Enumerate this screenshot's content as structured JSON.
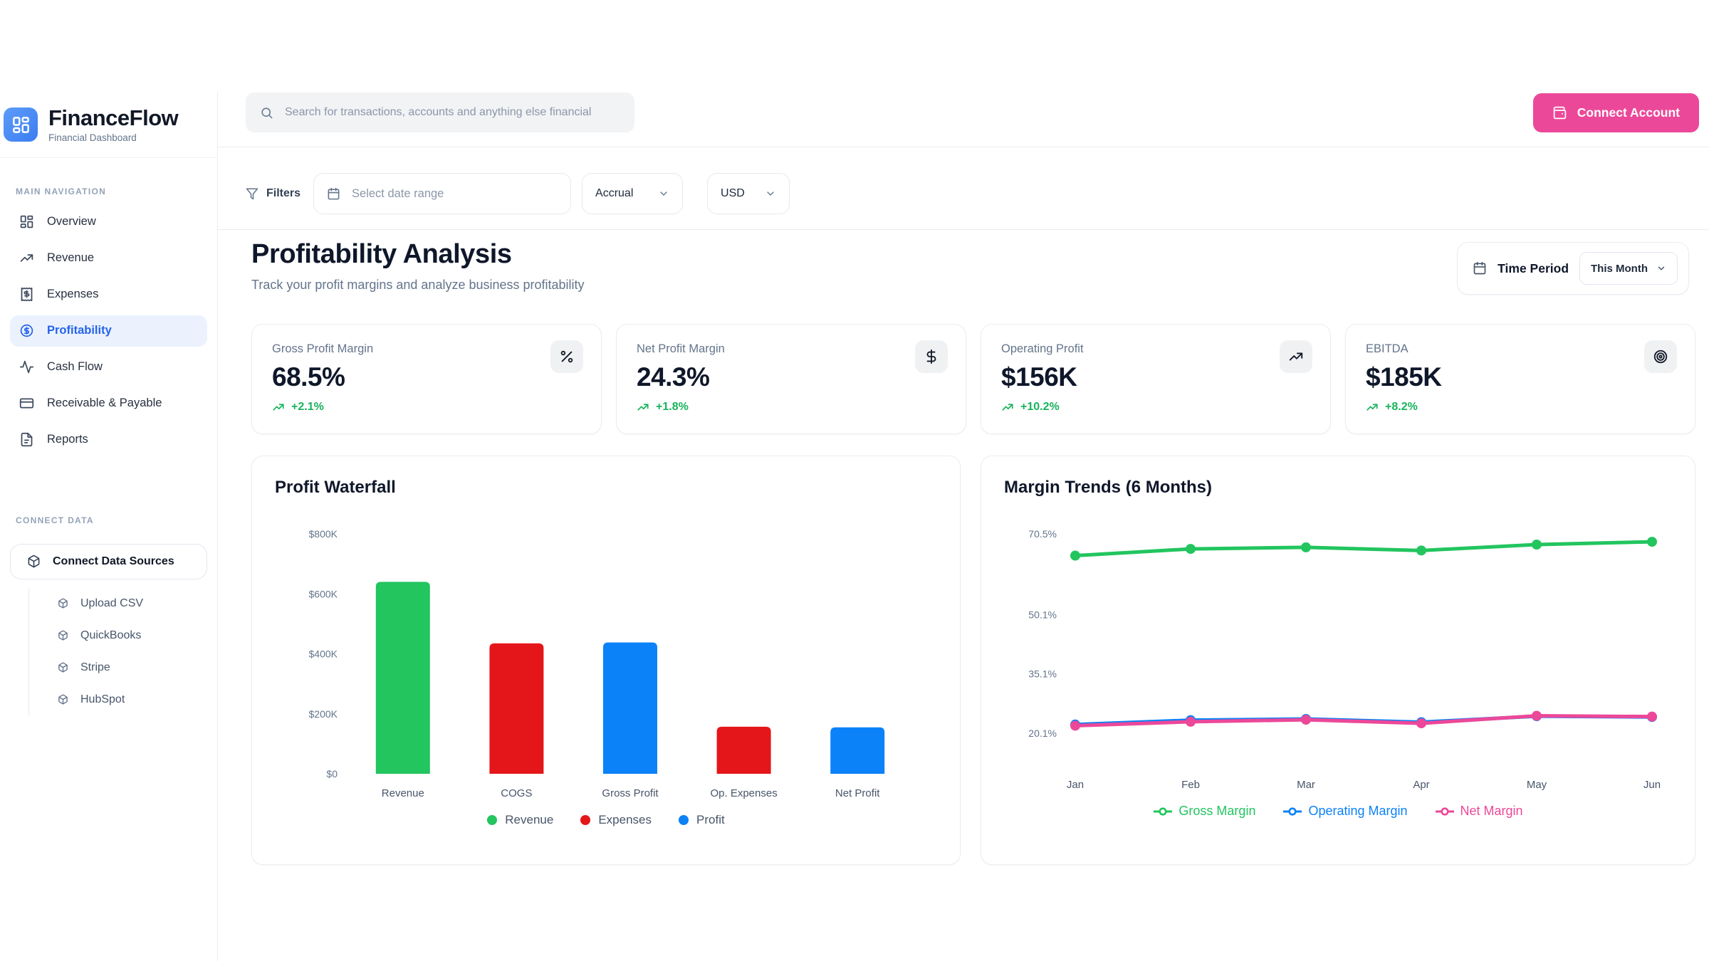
{
  "brand": {
    "name": "FinanceFlow",
    "subtitle": "Financial Dashboard",
    "logo_icon": "dashboard-grid-icon"
  },
  "header": {
    "search_placeholder": "Search for transactions, accounts and anything else financial",
    "search_icon": "magnifier-icon",
    "connect_account_label": "Connect Account",
    "connect_account_icon": "wallet-icon"
  },
  "filters": {
    "label": "Filters",
    "filter_icon": "funnel-icon",
    "date_placeholder": "Select date range",
    "date_icon": "calendar-icon",
    "basis_value": "Accrual",
    "currency_value": "USD"
  },
  "page": {
    "title": "Profitability Analysis",
    "subtitle": "Track your profit margins and analyze business profitability",
    "time_period_label": "Time Period",
    "time_period_value": "This Month",
    "time_period_icon": "calendar-icon"
  },
  "sidebar": {
    "nav_header": "MAIN NAVIGATION",
    "items": [
      {
        "label": "Overview",
        "icon": "dashboard-grid-icon",
        "active": false
      },
      {
        "label": "Revenue",
        "icon": "trending-up-icon",
        "active": false
      },
      {
        "label": "Expenses",
        "icon": "receipt-icon",
        "active": false
      },
      {
        "label": "Profitability",
        "icon": "dollar-circle-icon",
        "active": true
      },
      {
        "label": "Cash Flow",
        "icon": "activity-icon",
        "active": false
      },
      {
        "label": "Receivable & Payable",
        "icon": "credit-card-icon",
        "active": false
      },
      {
        "label": "Reports",
        "icon": "file-text-icon",
        "active": false
      }
    ],
    "connect_header": "CONNECT DATA",
    "connect_button_label": "Connect Data Sources",
    "source_icon": "cube-icon",
    "connect_sources": [
      {
        "label": "Upload CSV"
      },
      {
        "label": "QuickBooks"
      },
      {
        "label": "Stripe"
      },
      {
        "label": "HubSpot"
      }
    ]
  },
  "kpis": [
    {
      "label": "Gross Profit Margin",
      "value": "68.5%",
      "change": "+2.1%",
      "icon": "percent-icon"
    },
    {
      "label": "Net Profit Margin",
      "value": "24.3%",
      "change": "+1.8%",
      "icon": "dollar-icon"
    },
    {
      "label": "Operating Profit",
      "value": "$156K",
      "change": "+10.2%",
      "icon": "trending-up-icon"
    },
    {
      "label": "EBITDA",
      "value": "$185K",
      "change": "+8.2%",
      "icon": "target-icon"
    }
  ],
  "colors": {
    "positive": "#17b35c",
    "accent_pink": "#ec4899",
    "accent_blue": "#2563eb",
    "bar_green": "#22c55e",
    "bar_red": "#e51619",
    "bar_blue": "#0b82f7"
  },
  "chart_data": [
    {
      "type": "bar",
      "title": "Profit Waterfall",
      "categories": [
        "Revenue",
        "COGS",
        "Gross Profit",
        "Op. Expenses",
        "Net Profit"
      ],
      "values": [
        640000,
        435000,
        438000,
        157000,
        155000
      ],
      "bar_colors": [
        "#22c55e",
        "#e51619",
        "#0b82f7",
        "#e51619",
        "#0b82f7"
      ],
      "yticks": [
        {
          "label": "$0",
          "value": 0
        },
        {
          "label": "$200K",
          "value": 200000
        },
        {
          "label": "$400K",
          "value": 400000
        },
        {
          "label": "$600K",
          "value": 600000
        },
        {
          "label": "$800K",
          "value": 800000
        }
      ],
      "ylim": [
        0,
        800000
      ],
      "grid": false,
      "legend_position": "bottom",
      "legend": [
        {
          "label": "Revenue",
          "color": "#22c55e"
        },
        {
          "label": "Expenses",
          "color": "#e51619"
        },
        {
          "label": "Profit",
          "color": "#0b82f7"
        }
      ]
    },
    {
      "type": "line",
      "title": "Margin Trends (6 Months)",
      "x": [
        "Jan",
        "Feb",
        "Mar",
        "Apr",
        "May",
        "Jun"
      ],
      "series": [
        {
          "name": "Gross Margin",
          "color": "#22c55e",
          "values": [
            65.0,
            66.7,
            67.1,
            66.3,
            67.8,
            68.5
          ]
        },
        {
          "name": "Operating Margin",
          "color": "#0b82f7",
          "values": [
            22.3,
            23.4,
            23.7,
            22.9,
            24.4,
            24.2
          ]
        },
        {
          "name": "Net Margin",
          "color": "#ec4899",
          "values": [
            22.0,
            23.0,
            23.5,
            22.6,
            24.5,
            24.3
          ]
        }
      ],
      "yticks": [
        {
          "label": "70.5%",
          "value": 70.5
        },
        {
          "label": "50.1%",
          "value": 50.1
        },
        {
          "label": "35.1%",
          "value": 35.1
        },
        {
          "label": "20.1%",
          "value": 20.1
        }
      ],
      "ylim": [
        18.5,
        73.0
      ],
      "grid": false,
      "legend_position": "bottom"
    }
  ]
}
